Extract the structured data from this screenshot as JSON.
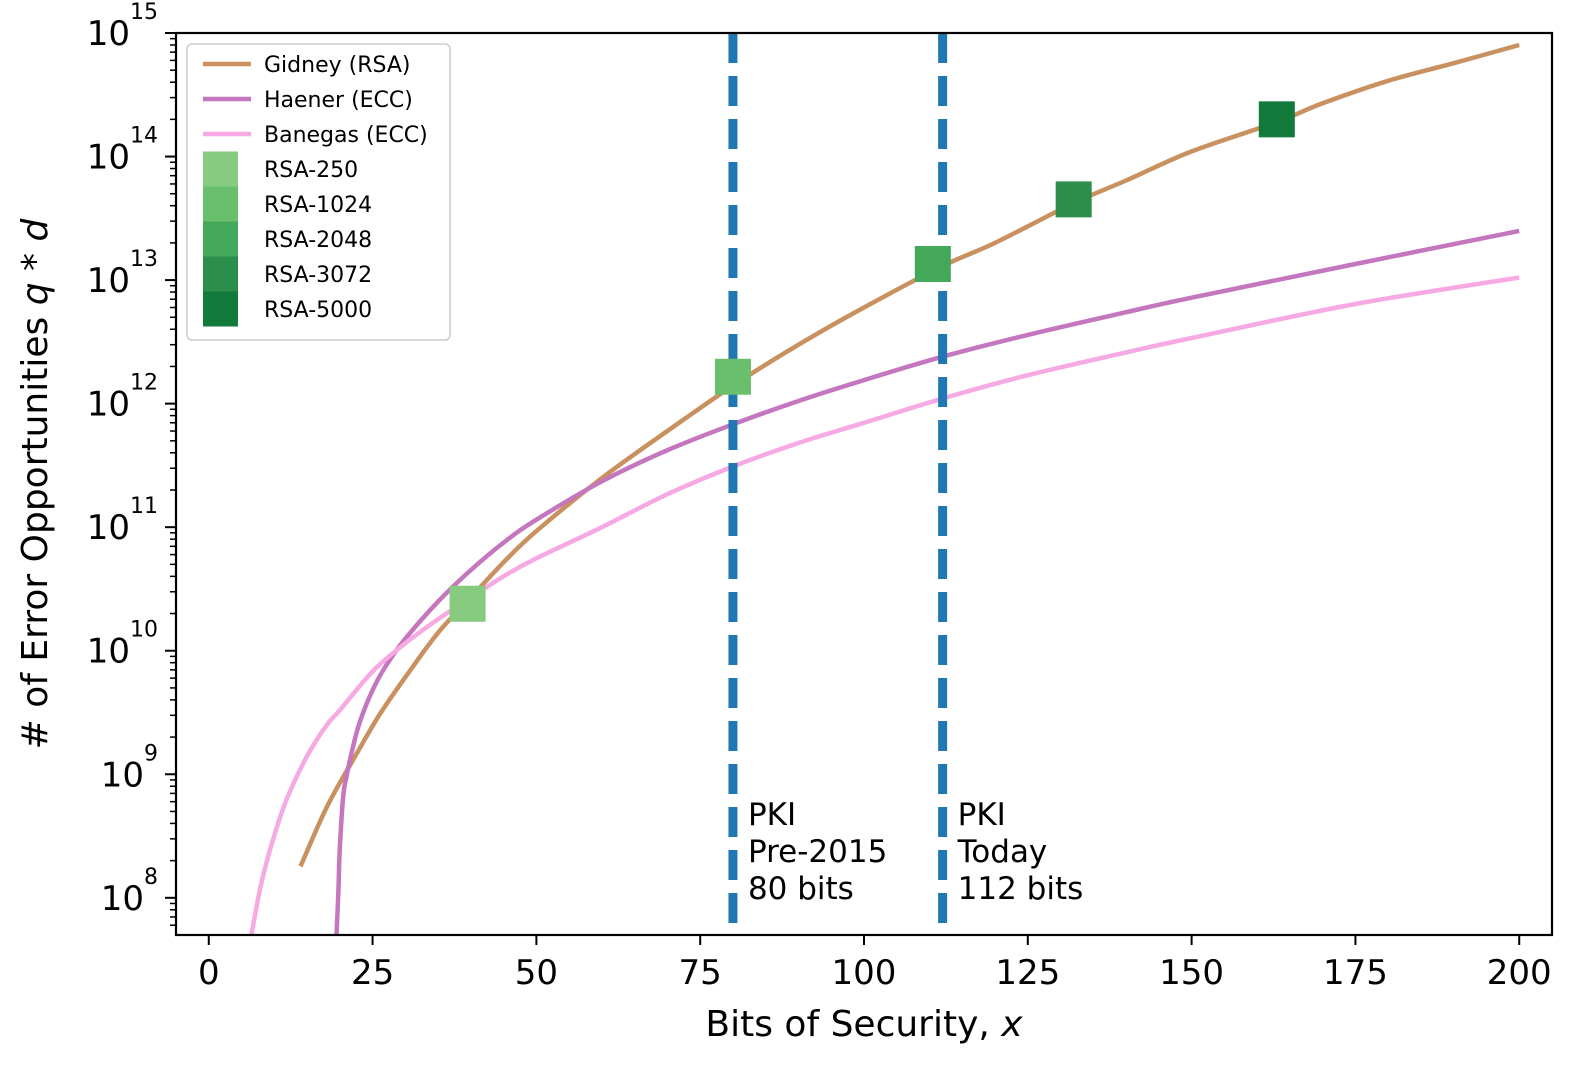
{
  "chart_data": {
    "type": "line",
    "xlabel_text": "Bits of Security, ",
    "xlabel_var": "x",
    "ylabel_text": "# of Error Opportunities ",
    "ylabel_var": "q * d",
    "x_scale": "linear",
    "y_scale": "log",
    "xlim": [
      -5,
      205
    ],
    "ylim": [
      50000000,
      1000000000000000
    ],
    "x_ticks": [
      0,
      25,
      50,
      75,
      100,
      125,
      150,
      175,
      200
    ],
    "x_tick_labels": [
      "0",
      "25",
      "50",
      "75",
      "100",
      "125",
      "150",
      "175",
      "200"
    ],
    "y_ticks": [
      100000000,
      1000000000,
      10000000000,
      100000000000,
      1000000000000,
      10000000000000,
      100000000000000,
      1000000000000000
    ],
    "y_tick_base": "10",
    "y_tick_exponents": [
      "8",
      "9",
      "10",
      "11",
      "12",
      "13",
      "14",
      "15"
    ],
    "grid": false,
    "legend_position": "upper-left",
    "series": [
      {
        "name": "Gidney (RSA)",
        "color": "#c8915f",
        "x": [
          14,
          18,
          22,
          26,
          30,
          35,
          40,
          45,
          50,
          60,
          70,
          80,
          90,
          100,
          112,
          120,
          132,
          140,
          150,
          163,
          170,
          180,
          190,
          200
        ],
        "y": [
          180000000,
          540000000,
          1300000000,
          3000000000,
          6100000000,
          14000000000,
          27000000000,
          52000000000,
          93000000000,
          250000000000,
          600000000000,
          1400000000000,
          3000000000000,
          6000000000000,
          13000000000000,
          20000000000000,
          42000000000000,
          64000000000000,
          110000000000000,
          190000000000000,
          270000000000000,
          410000000000000,
          570000000000000,
          800000000000000
        ]
      },
      {
        "name": "Haener (ECC)",
        "color": "#c476be",
        "x": [
          19.5,
          19.8,
          20,
          20.5,
          21,
          22,
          23,
          25,
          27,
          30,
          35,
          40,
          45,
          50,
          60,
          70,
          80,
          90,
          100,
          112,
          125,
          140,
          150,
          175,
          200
        ],
        "y": [
          50000000,
          120000000,
          250000000,
          650000000,
          950000000,
          1650000000,
          2600000000,
          4800000000,
          7500000000,
          12500000000,
          25000000000,
          45000000000,
          75000000000,
          115000000000,
          235000000000,
          420000000000,
          680000000000,
          1050000000000,
          1550000000000,
          2400000000000,
          3600000000000,
          5500000000000,
          7200000000000,
          13500000000000,
          25000000000000
        ]
      },
      {
        "name": "Banegas (ECC)",
        "color": "#f6a9e2",
        "x": [
          6.5,
          8,
          10,
          12,
          15,
          18,
          20,
          25,
          30,
          35,
          40,
          45,
          50,
          60,
          70,
          80,
          90,
          100,
          112,
          125,
          140,
          150,
          175,
          200
        ],
        "y": [
          50000000,
          130000000,
          320000000,
          650000000,
          1400000000,
          2500000000,
          3300000000,
          6800000000,
          11500000000,
          18000000000,
          27000000000,
          40000000000,
          56000000000,
          100000000000,
          185000000000,
          310000000000,
          480000000000,
          700000000000,
          1100000000000,
          1700000000000,
          2600000000000,
          3400000000000,
          6400000000000,
          10500000000000
        ]
      }
    ],
    "markers": [
      {
        "name": "RSA-250",
        "color": "#86cb80",
        "x": 39.5,
        "y": 24000000000
      },
      {
        "name": "RSA-1024",
        "color": "#6abf6c",
        "x": 80,
        "y": 1650000000000
      },
      {
        "name": "RSA-2048",
        "color": "#43a85a",
        "x": 110.5,
        "y": 13500000000000
      },
      {
        "name": "RSA-3072",
        "color": "#2b8f4b",
        "x": 132,
        "y": 45000000000000
      },
      {
        "name": "RSA-5000",
        "color": "#127a3a",
        "x": 163,
        "y": 200000000000000
      }
    ],
    "vlines": [
      {
        "x": 80,
        "color": "#1f77b4",
        "annotation": [
          "PKI",
          "Pre-2015",
          "80 bits"
        ]
      },
      {
        "x": 112,
        "color": "#1f77b4",
        "annotation": [
          "PKI",
          "Today",
          "112 bits"
        ]
      }
    ]
  }
}
